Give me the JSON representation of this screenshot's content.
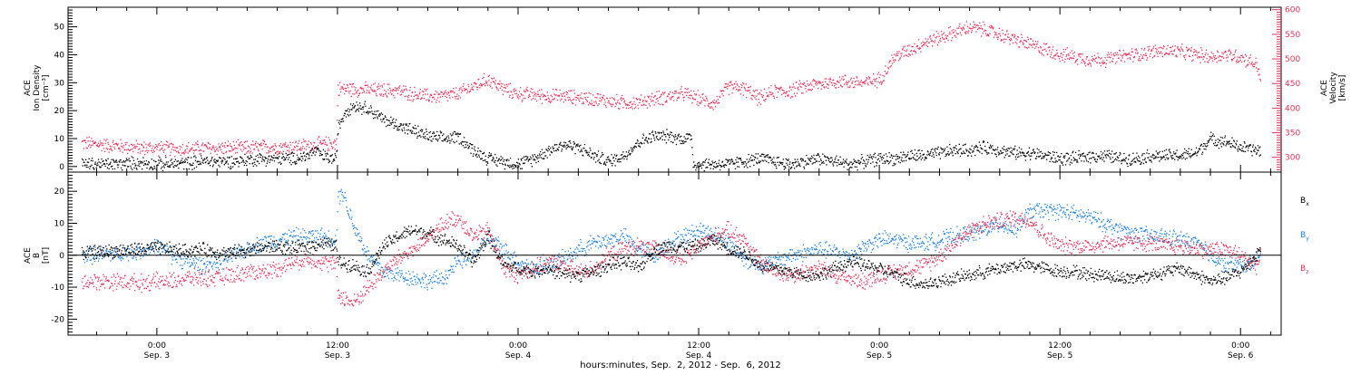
{
  "chart_data": [
    {
      "type": "scatter",
      "panel": "top",
      "ylabel_left": [
        "ACE",
        "Ion Density",
        "[cm⁻³]"
      ],
      "ylabel_right": [
        "ACE",
        "Velocity",
        "[km/s]"
      ],
      "ylim_left": [
        -2,
        57
      ],
      "yticks_left": [
        0,
        10,
        20,
        30,
        40,
        50
      ],
      "ylim_right": [
        270,
        605
      ],
      "yticks_right": [
        300,
        350,
        400,
        450,
        500,
        550,
        600
      ],
      "series": [
        {
          "axis": "left",
          "color": "#000000",
          "x_hours": [
            -5,
            -3,
            -1,
            0,
            1,
            2,
            3,
            4,
            5,
            6,
            7,
            8,
            9,
            10,
            10.5,
            11,
            11.5,
            11.9,
            12,
            12.5,
            13,
            14,
            15,
            16,
            17,
            18,
            19,
            20,
            21,
            22,
            23,
            24,
            25,
            26,
            27,
            28,
            29,
            30,
            31,
            32,
            33,
            34,
            35,
            35.5,
            35.6,
            36,
            37,
            38,
            39,
            40,
            41,
            42,
            43,
            44,
            45,
            46,
            47,
            48,
            49,
            50,
            51,
            52,
            53,
            54,
            55,
            56,
            57,
            58,
            59,
            60,
            61,
            62,
            63,
            64,
            65,
            66,
            67,
            68,
            69,
            70,
            71,
            72,
            73,
            73.3
          ],
          "values": [
            1,
            1,
            1.5,
            1,
            1,
            1.5,
            2,
            2,
            2,
            2.5,
            3,
            3,
            3,
            4,
            6,
            4,
            3,
            3,
            14,
            20,
            22,
            21,
            17,
            15,
            13,
            11,
            10,
            11,
            6,
            3,
            2,
            1,
            3,
            6,
            8,
            7,
            4,
            2,
            4,
            9,
            11,
            11,
            10,
            11,
            1,
            1,
            1,
            1,
            2,
            3,
            2,
            1,
            2,
            3,
            2,
            1,
            2,
            3,
            3,
            4,
            4,
            5,
            6,
            6,
            7,
            6,
            5,
            5,
            4,
            3,
            3,
            4,
            4,
            3,
            3,
            4,
            4,
            4,
            5,
            10,
            9,
            7,
            6,
            6
          ]
        },
        {
          "axis": "right",
          "color": "#e8325a",
          "x_hours": [
            -5,
            -3,
            -1,
            0,
            1,
            2,
            3,
            4,
            5,
            6,
            7,
            8,
            9,
            10,
            11,
            11.9,
            12,
            13,
            14,
            15,
            16,
            17,
            18,
            19,
            20,
            21,
            22,
            23,
            24,
            25,
            26,
            27,
            28,
            29,
            30,
            31,
            32,
            33,
            34,
            35,
            36,
            37,
            38,
            39,
            40,
            41,
            42,
            43,
            44,
            45,
            46,
            47,
            48,
            49,
            50,
            51,
            52,
            53,
            54,
            55,
            56,
            57,
            58,
            59,
            60,
            61,
            62,
            63,
            64,
            65,
            66,
            67,
            68,
            69,
            70,
            71,
            72,
            73,
            73.3
          ],
          "values": [
            330,
            325,
            320,
            320,
            318,
            318,
            320,
            320,
            320,
            320,
            322,
            322,
            323,
            325,
            328,
            330,
            440,
            440,
            438,
            437,
            436,
            430,
            425,
            425,
            430,
            445,
            460,
            440,
            430,
            428,
            425,
            425,
            422,
            420,
            415,
            412,
            412,
            420,
            425,
            430,
            420,
            410,
            445,
            440,
            420,
            435,
            435,
            445,
            450,
            455,
            455,
            452,
            460,
            505,
            520,
            535,
            545,
            555,
            565,
            560,
            550,
            540,
            530,
            520,
            510,
            505,
            500,
            500,
            505,
            510,
            515,
            518,
            515,
            510,
            505,
            510,
            505,
            490,
            465
          ]
        }
      ]
    },
    {
      "type": "scatter",
      "panel": "bottom",
      "ylabel": [
        "ACE",
        "B",
        "[nT]"
      ],
      "ylim": [
        -25,
        26
      ],
      "yticks": [
        -20,
        -10,
        0,
        10,
        20
      ],
      "zero_line": true,
      "legend": [
        {
          "label": "B",
          "sub": "x",
          "color": "#000000"
        },
        {
          "label": "B",
          "sub": "y",
          "color": "#1f80e0"
        },
        {
          "label": "B",
          "sub": "z",
          "color": "#e8325a"
        }
      ],
      "series": [
        {
          "color": "#000000",
          "x_hours": [
            -5,
            -3,
            -1,
            0,
            1,
            2,
            3,
            4,
            5,
            6,
            7,
            8,
            9,
            10,
            11,
            11.9,
            12,
            13,
            14,
            15,
            16,
            17,
            18,
            19,
            20,
            21,
            22,
            23,
            24,
            25,
            26,
            27,
            28,
            29,
            30,
            31,
            32,
            33,
            34,
            35,
            36,
            37,
            38,
            39,
            40,
            41,
            42,
            43,
            44,
            45,
            46,
            47,
            48,
            49,
            50,
            51,
            52,
            53,
            54,
            55,
            56,
            57,
            58,
            59,
            60,
            61,
            62,
            63,
            64,
            65,
            66,
            67,
            68,
            69,
            70,
            71,
            72,
            73,
            73.3
          ],
          "values": [
            1,
            1.5,
            2,
            2.5,
            2,
            1.5,
            2,
            1,
            1,
            2,
            2.5,
            3,
            2,
            3,
            4,
            3,
            -2,
            -3,
            -5,
            3,
            6,
            8,
            7,
            5,
            3,
            -2,
            6,
            -3,
            -4,
            -5,
            -4,
            -6,
            -6,
            -5,
            -3,
            -2,
            -4,
            2,
            3,
            3,
            3,
            5,
            2,
            1,
            -3,
            -4,
            -5,
            -6,
            -6,
            -4,
            -2,
            -3,
            -4,
            -6,
            -8,
            -9,
            -8,
            -7,
            -6,
            -5,
            -4,
            -3,
            -3,
            -4,
            -5,
            -5,
            -6,
            -6,
            -7,
            -7,
            -6,
            -5,
            -4,
            -6,
            -8,
            -7,
            -5,
            0,
            3
          ]
        },
        {
          "color": "#1f80e0",
          "x_hours": [
            -5,
            -3,
            -1,
            0,
            1,
            2,
            3,
            4,
            5,
            6,
            7,
            8,
            9,
            10,
            11,
            11.9,
            12,
            12.3,
            13,
            14,
            15,
            16,
            17,
            18,
            19,
            20,
            21,
            22,
            23,
            24,
            25,
            26,
            27,
            28,
            29,
            30,
            31,
            32,
            33,
            34,
            35,
            36,
            37,
            38,
            39,
            40,
            41,
            42,
            43,
            44,
            45,
            46,
            47,
            48,
            49,
            50,
            51,
            52,
            53,
            54,
            55,
            56,
            57,
            58,
            59,
            60,
            61,
            62,
            63,
            64,
            65,
            66,
            67,
            68,
            69,
            70,
            71,
            72,
            73,
            73.3
          ],
          "values": [
            0,
            0.5,
            1.5,
            3,
            0,
            -2,
            -3,
            -2,
            0,
            2,
            4,
            5,
            6,
            6,
            6,
            5,
            18,
            20,
            10,
            0,
            -5,
            -6,
            -7,
            -8,
            -7,
            -2,
            0,
            6,
            2,
            -2,
            -4,
            -3,
            -1,
            2,
            4,
            5,
            6,
            2,
            0,
            4,
            6,
            8,
            7,
            4,
            -1,
            -3,
            -2,
            0,
            1,
            2,
            1,
            0,
            3,
            5,
            5,
            4,
            4,
            5,
            6,
            7,
            8,
            10,
            8,
            14,
            14,
            14,
            13,
            12,
            10,
            8,
            7,
            6,
            6,
            5,
            4,
            0,
            -3,
            -3,
            -2,
            0
          ]
        },
        {
          "color": "#e8325a",
          "x_hours": [
            -5,
            -3,
            -1,
            0,
            1,
            2,
            3,
            4,
            5,
            6,
            7,
            8,
            9,
            10,
            11,
            11.9,
            12,
            13,
            14,
            15,
            16,
            17,
            18,
            19,
            20,
            21,
            22,
            23,
            24,
            25,
            26,
            27,
            28,
            29,
            30,
            31,
            32,
            33,
            34,
            35,
            36,
            37,
            38,
            39,
            40,
            41,
            42,
            43,
            44,
            45,
            46,
            47,
            48,
            49,
            50,
            51,
            52,
            53,
            54,
            55,
            56,
            57,
            58,
            59,
            60,
            61,
            62,
            63,
            64,
            65,
            66,
            67,
            68,
            69,
            70,
            71,
            72,
            73,
            73.3
          ],
          "values": [
            -8,
            -8,
            -8.5,
            -8,
            -8,
            -7,
            -7,
            -7,
            -6,
            -5,
            -5,
            -4,
            -2,
            -1,
            -2,
            -3,
            -12,
            -15,
            -10,
            -5,
            -1,
            2,
            5,
            10,
            12,
            6,
            8,
            -4,
            -6,
            -4,
            -2,
            -3,
            -5,
            -4,
            0,
            2,
            3,
            2,
            0,
            -1,
            3,
            6,
            8,
            5,
            -2,
            -5,
            -6,
            -5,
            -4,
            -6,
            -7,
            -8,
            -6,
            -5,
            -4,
            -3,
            0,
            4,
            8,
            10,
            11,
            12,
            11,
            6,
            3,
            3,
            3,
            4,
            4,
            4,
            4,
            3,
            3,
            2,
            2,
            2,
            0,
            -3,
            -1
          ]
        }
      ]
    }
  ],
  "xaxis": {
    "xlim_hours": [
      -5.9,
      74.7
    ],
    "ticks": [
      {
        "hour": 0,
        "time": "0:00",
        "date": "Sep. 3"
      },
      {
        "hour": 12,
        "time": "12:00",
        "date": "Sep. 3"
      },
      {
        "hour": 24,
        "time": "0:00",
        "date": "Sep. 4"
      },
      {
        "hour": 36,
        "time": "12:00",
        "date": "Sep. 4"
      },
      {
        "hour": 48,
        "time": "0:00",
        "date": "Sep. 5"
      },
      {
        "hour": 60,
        "time": "12:00",
        "date": "Sep. 5"
      },
      {
        "hour": 72,
        "time": "0:00",
        "date": "Sep. 6"
      }
    ],
    "minor_step_hours": 2,
    "label": "hours:minutes, Sep.  2, 2012 - Sep.  6, 2012"
  },
  "colors": {
    "black": "#000000",
    "pink": "#e8325a",
    "blue": "#1f80e0"
  }
}
